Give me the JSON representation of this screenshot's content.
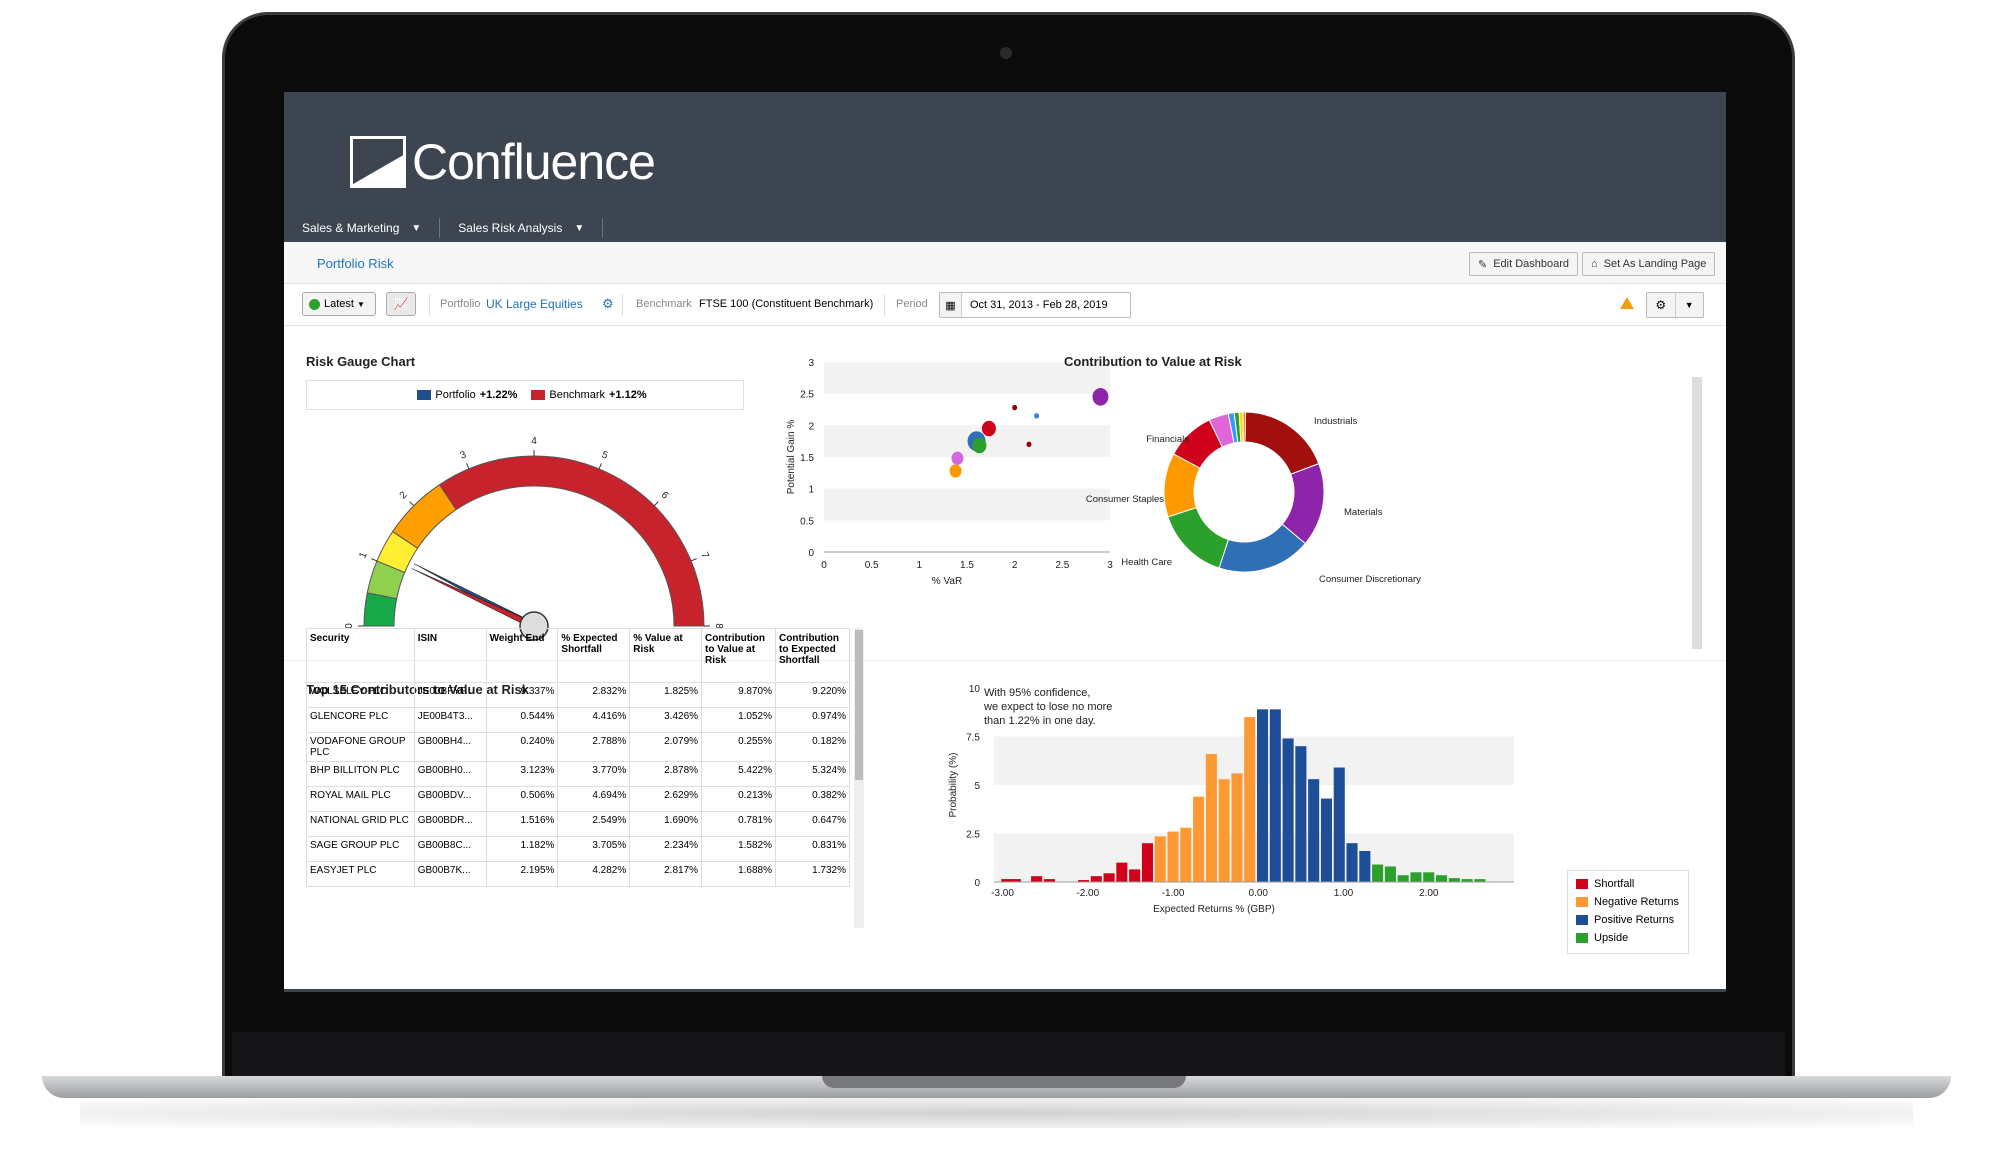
{
  "brand": {
    "name": "Confluence"
  },
  "nav": {
    "items": [
      {
        "label": "Sales & Marketing"
      },
      {
        "label": "Sales Risk Analysis"
      }
    ]
  },
  "page": {
    "title": "Portfolio Risk"
  },
  "toolbar": {
    "edit_dashboard": "Edit Dashboard",
    "set_landing": "Set As Landing Page"
  },
  "filters": {
    "latest": "Latest",
    "portfolio_label": "Portfolio",
    "portfolio_value": "UK Large Equities",
    "benchmark_label": "Benchmark",
    "benchmark_value": "FTSE 100 (Constituent Benchmark)",
    "period_label": "Period",
    "period_value": "Oct 31, 2013 - Feb 28, 2019"
  },
  "gauge": {
    "title": "Risk Gauge Chart",
    "legend": [
      {
        "label": "Portfolio",
        "value": "+1.22%",
        "color": "#1f4e8c"
      },
      {
        "label": "Benchmark",
        "value": "+1.12%",
        "color": "#c8232c"
      }
    ],
    "ticks": [
      "0",
      "1",
      "2",
      "3",
      "4",
      "5",
      "6",
      "7",
      "8"
    ],
    "min": 0,
    "max": 8,
    "bands": [
      {
        "from": 0,
        "to": 0.5,
        "color": "#17a84a"
      },
      {
        "from": 0.5,
        "to": 1,
        "color": "#8fd14f"
      },
      {
        "from": 1,
        "to": 1.5,
        "color": "#ffef33"
      },
      {
        "from": 1.5,
        "to": 2.5,
        "color": "#ffa000"
      },
      {
        "from": 2.5,
        "to": 8,
        "color": "#c8232c"
      }
    ],
    "needles": [
      {
        "value": 1.22,
        "color": "#1f4e8c"
      },
      {
        "value": 1.12,
        "color": "#c8232c"
      }
    ]
  },
  "scatter": {
    "xlabel": "% VaR",
    "ylabel": "Potential Gain %",
    "xticks": [
      "0",
      "0.5",
      "1",
      "1.5",
      "2",
      "2.5",
      "3"
    ],
    "yticks": [
      "0",
      "0.5",
      "1",
      "1.5",
      "2",
      "2.5",
      "3"
    ],
    "xlim": [
      0,
      3
    ],
    "ylim": [
      0,
      3
    ],
    "points": [
      {
        "x": 1.38,
        "y": 1.28,
        "r": 6,
        "color": "#ff9900"
      },
      {
        "x": 1.4,
        "y": 1.48,
        "r": 6,
        "color": "#d268e0"
      },
      {
        "x": 1.6,
        "y": 1.75,
        "r": 9,
        "color": "#2e6fb5"
      },
      {
        "x": 1.63,
        "y": 1.68,
        "r": 7,
        "color": "#2ca02c"
      },
      {
        "x": 1.73,
        "y": 1.95,
        "r": 7,
        "color": "#d0021b"
      },
      {
        "x": 2.0,
        "y": 2.28,
        "r": 2.5,
        "color": "#8b0000"
      },
      {
        "x": 2.15,
        "y": 1.7,
        "r": 2.5,
        "color": "#8b0000"
      },
      {
        "x": 2.23,
        "y": 2.15,
        "r": 2.5,
        "color": "#2e86de"
      },
      {
        "x": 2.9,
        "y": 2.45,
        "r": 8,
        "color": "#8e24aa"
      }
    ]
  },
  "donut": {
    "title": "Contribution to Value at Risk",
    "slices": [
      {
        "label": "Industrials",
        "value": 19,
        "color": "#a10f0f"
      },
      {
        "label": "Materials",
        "value": 17,
        "color": "#8e24aa"
      },
      {
        "label": "Consumer Discretionary",
        "value": 19,
        "color": "#2e6fb5"
      },
      {
        "label": "Health Care",
        "value": 15,
        "color": "#2ca02c"
      },
      {
        "label": "Consumer Staples",
        "value": 13,
        "color": "#ff9900"
      },
      {
        "label": "Financials",
        "value": 10,
        "color": "#d0021b"
      },
      {
        "label": "",
        "value": 4,
        "color": "#e066d8"
      },
      {
        "label": "",
        "value": 1.2,
        "color": "#3399ff"
      },
      {
        "label": "",
        "value": 1,
        "color": "#2ca02c"
      },
      {
        "label": "",
        "value": 0.8,
        "color": "#ffdd00"
      },
      {
        "label": "",
        "value": 0.5,
        "color": "#ff7700"
      }
    ]
  },
  "table": {
    "title": "Top 15 Contributors to Value at Risk",
    "columns": [
      "Security",
      "ISIN",
      "Weight End",
      "% Expected Shortfall",
      "% Value at Risk",
      "Contribution to Value at Risk",
      "Contribution to Expected Shortfall"
    ],
    "rows": [
      [
        "WOLSELEY PLC",
        "JE00BFYF...",
        "9.337%",
        "2.832%",
        "1.825%",
        "9.870%",
        "9.220%"
      ],
      [
        "GLENCORE PLC",
        "JE00B4T3...",
        "0.544%",
        "4.416%",
        "3.426%",
        "1.052%",
        "0.974%"
      ],
      [
        "VODAFONE GROUP PLC",
        "GB00BH4...",
        "0.240%",
        "2.788%",
        "2.079%",
        "0.255%",
        "0.182%"
      ],
      [
        "BHP BILLITON PLC",
        "GB00BH0...",
        "3.123%",
        "3.770%",
        "2.878%",
        "5.422%",
        "5.324%"
      ],
      [
        "ROYAL MAIL PLC",
        "GB00BDV...",
        "0.506%",
        "4.694%",
        "2.629%",
        "0.213%",
        "0.382%"
      ],
      [
        "NATIONAL GRID PLC",
        "GB00BDR...",
        "1.516%",
        "2.549%",
        "1.690%",
        "0.781%",
        "0.647%"
      ],
      [
        "SAGE GROUP PLC",
        "GB00B8C...",
        "1.182%",
        "3.705%",
        "2.234%",
        "1.582%",
        "0.831%"
      ],
      [
        "EASYJET PLC",
        "GB00B7K...",
        "2.195%",
        "4.282%",
        "2.817%",
        "1.688%",
        "1.732%"
      ]
    ]
  },
  "histogram": {
    "note_lines": [
      "With 95% confidence,",
      "we expect to lose no more",
      "than 1.22% in one day."
    ],
    "xlabel": "Expected Returns % (GBP)",
    "ylabel": "Probability (%)",
    "xticks": [
      "-3.00",
      "-2.00",
      "-1.00",
      "0.00",
      "1.00",
      "2.00"
    ],
    "yticks": [
      "0",
      "2.5",
      "5",
      "7.5",
      "10"
    ],
    "xlim": [
      -3.1,
      3.0
    ],
    "ylim": [
      0,
      10
    ],
    "legend": [
      {
        "label": "Shortfall",
        "color": "#d0021b"
      },
      {
        "label": "Negative Returns",
        "color": "#ff9933"
      },
      {
        "label": "Positive Returns",
        "color": "#1f4e99"
      },
      {
        "label": "Upside",
        "color": "#2ca02c"
      }
    ],
    "bins": [
      {
        "x": -2.95,
        "y": 0.15,
        "cat": 0
      },
      {
        "x": -2.85,
        "y": 0.15,
        "cat": 0
      },
      {
        "x": -2.6,
        "y": 0.3,
        "cat": 0
      },
      {
        "x": -2.45,
        "y": 0.15,
        "cat": 0
      },
      {
        "x": -2.05,
        "y": 0.1,
        "cat": 0
      },
      {
        "x": -1.9,
        "y": 0.3,
        "cat": 0
      },
      {
        "x": -1.75,
        "y": 0.45,
        "cat": 0
      },
      {
        "x": -1.6,
        "y": 1.0,
        "cat": 0
      },
      {
        "x": -1.45,
        "y": 0.65,
        "cat": 0
      },
      {
        "x": -1.3,
        "y": 2.0,
        "cat": 0
      },
      {
        "x": -1.15,
        "y": 2.35,
        "cat": 1
      },
      {
        "x": -1.0,
        "y": 2.6,
        "cat": 1
      },
      {
        "x": -0.85,
        "y": 2.8,
        "cat": 1
      },
      {
        "x": -0.7,
        "y": 4.4,
        "cat": 1
      },
      {
        "x": -0.55,
        "y": 6.6,
        "cat": 1
      },
      {
        "x": -0.4,
        "y": 5.3,
        "cat": 1
      },
      {
        "x": -0.25,
        "y": 5.6,
        "cat": 1
      },
      {
        "x": -0.1,
        "y": 8.5,
        "cat": 1
      },
      {
        "x": 0.05,
        "y": 8.9,
        "cat": 2
      },
      {
        "x": 0.2,
        "y": 8.9,
        "cat": 2
      },
      {
        "x": 0.35,
        "y": 7.4,
        "cat": 2
      },
      {
        "x": 0.5,
        "y": 7.0,
        "cat": 2
      },
      {
        "x": 0.65,
        "y": 5.3,
        "cat": 2
      },
      {
        "x": 0.8,
        "y": 4.3,
        "cat": 2
      },
      {
        "x": 0.95,
        "y": 5.9,
        "cat": 2
      },
      {
        "x": 1.1,
        "y": 2.0,
        "cat": 2
      },
      {
        "x": 1.25,
        "y": 1.6,
        "cat": 2
      },
      {
        "x": 1.4,
        "y": 0.9,
        "cat": 3
      },
      {
        "x": 1.55,
        "y": 0.8,
        "cat": 3
      },
      {
        "x": 1.7,
        "y": 0.35,
        "cat": 3
      },
      {
        "x": 1.85,
        "y": 0.5,
        "cat": 3
      },
      {
        "x": 2.0,
        "y": 0.5,
        "cat": 3
      },
      {
        "x": 2.15,
        "y": 0.35,
        "cat": 3
      },
      {
        "x": 2.3,
        "y": 0.2,
        "cat": 3
      },
      {
        "x": 2.45,
        "y": 0.15,
        "cat": 3
      },
      {
        "x": 2.6,
        "y": 0.15,
        "cat": 3
      }
    ]
  }
}
